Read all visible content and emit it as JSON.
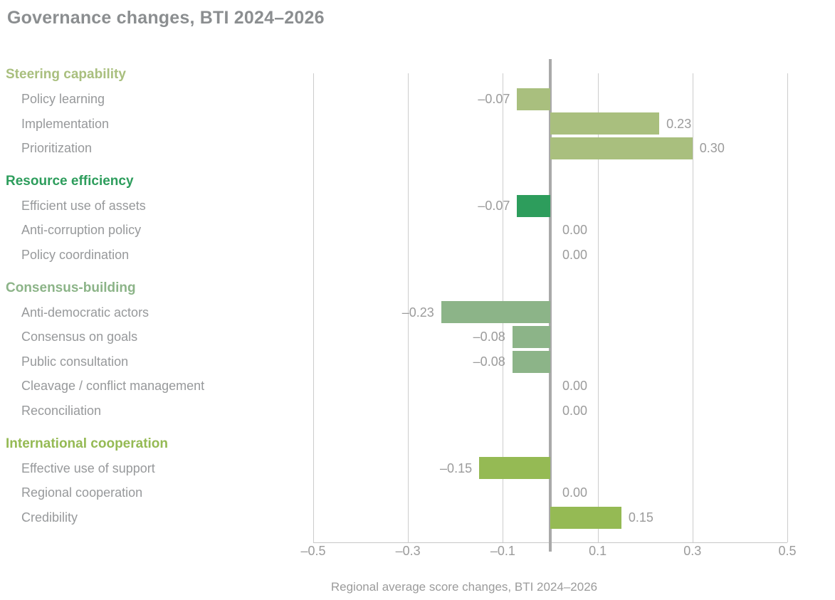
{
  "title": "Governance changes, BTI 2024–2026",
  "caption": "Regional average score changes, BTI 2024–2026",
  "colors": {
    "title_text": "#8b8e90",
    "item_text": "#97999b",
    "value_text": "#9b9b9b",
    "gridline": "#cccccc",
    "axis_line": "#c8c8c8",
    "zero_line": "#a9a9a9",
    "background": "#ffffff"
  },
  "chart_data": {
    "type": "bar",
    "orientation": "horizontal",
    "title": "Governance changes, BTI 2024–2026",
    "xlabel": "Regional average score changes, BTI 2024–2026",
    "xlim": [
      -0.5,
      0.5
    ],
    "grid": true,
    "x_ticks": [
      {
        "value": -0.5,
        "label": "–0.5"
      },
      {
        "value": -0.3,
        "label": "–0.3"
      },
      {
        "value": -0.1,
        "label": "–0.1"
      },
      {
        "value": 0.1,
        "label": "0.1"
      },
      {
        "value": 0.3,
        "label": "0.3"
      },
      {
        "value": 0.5,
        "label": "0.5"
      }
    ],
    "sections": [
      {
        "name": "Steering capability",
        "color": "#a9bf7e",
        "items": [
          {
            "label": "Policy learning",
            "value": -0.07,
            "display": "–0.07"
          },
          {
            "label": "Implementation",
            "value": 0.23,
            "display": "0.23"
          },
          {
            "label": "Prioritization",
            "value": 0.3,
            "display": "0.30"
          }
        ]
      },
      {
        "name": "Resource efficiency",
        "color": "#2d9d5c",
        "items": [
          {
            "label": "Efficient use of assets",
            "value": -0.07,
            "display": "–0.07"
          },
          {
            "label": "Anti-corruption policy",
            "value": 0.0,
            "display": "0.00"
          },
          {
            "label": "Policy coordination",
            "value": 0.0,
            "display": "0.00"
          }
        ]
      },
      {
        "name": "Consensus-building",
        "color": "#8cb488",
        "items": [
          {
            "label": "Anti-democratic actors",
            "value": -0.23,
            "display": "–0.23"
          },
          {
            "label": "Consensus on goals",
            "value": -0.08,
            "display": "–0.08"
          },
          {
            "label": "Public consultation",
            "value": -0.08,
            "display": "–0.08"
          },
          {
            "label": "Cleavage / conflict management",
            "value": 0.0,
            "display": "0.00"
          },
          {
            "label": "Reconciliation",
            "value": 0.0,
            "display": "0.00"
          }
        ]
      },
      {
        "name": "International cooperation",
        "color": "#95ba54",
        "items": [
          {
            "label": "Effective use of support",
            "value": -0.15,
            "display": "–0.15"
          },
          {
            "label": "Regional cooperation",
            "value": 0.0,
            "display": "0.00"
          },
          {
            "label": "Credibility",
            "value": 0.15,
            "display": "0.15"
          }
        ]
      }
    ]
  }
}
